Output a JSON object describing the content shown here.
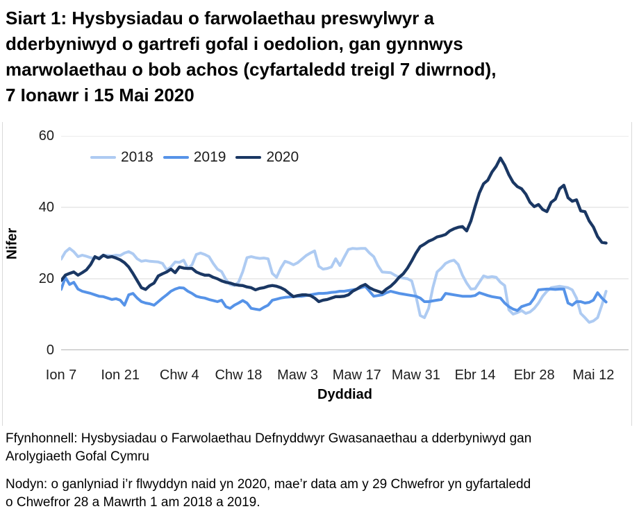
{
  "page": {
    "title_lines": [
      "Siart 1: Hysbysiadau o farwolaethau preswylwyr a",
      "dderbyniwyd o gartrefi gofal i oedolion, gan gynnwys",
      "marwolaethau o bob achos (cyfartaledd treigl 7 diwrnod),",
      "7 Ionawr i 15 Mai 2020"
    ]
  },
  "chart_data": {
    "type": "line",
    "title": "Siart 1: Hysbysiadau o farwolaethau preswylwyr a dderbyniwyd o gartrefi gofal i oedolion, gan gynnwys marwolaethau o bob achos (cyfartaledd treigl 7 diwrnod), 7 Ionawr i 15 Mai 2020",
    "xlabel": "Dyddiad",
    "ylabel": "Nifer",
    "ylim": [
      0,
      60
    ],
    "y_ticks": [
      0,
      20,
      40,
      60
    ],
    "grid": true,
    "gridline_color": "#d9d9d9",
    "axis_line_color": "#999999",
    "legend_position": "top-left",
    "x_unit": "days from 7 Ionawr 2020",
    "x_range_days": [
      0,
      129
    ],
    "x_ticks": [
      {
        "label": "Ion 7",
        "day": 0
      },
      {
        "label": "Ion 21",
        "day": 14
      },
      {
        "label": "Chw 4",
        "day": 28
      },
      {
        "label": "Chw 18",
        "day": 42
      },
      {
        "label": "Maw 3",
        "day": 56
      },
      {
        "label": "Maw 17",
        "day": 70
      },
      {
        "label": "Maw 31",
        "day": 84
      },
      {
        "label": "Ebr 14",
        "day": 98
      },
      {
        "label": "Ebr 28",
        "day": 112
      },
      {
        "label": "Mai 12",
        "day": 126
      }
    ],
    "series": [
      {
        "name": "2018",
        "color": "#aecbf2",
        "values": [
          25.5,
          27.5,
          28.5,
          27.6,
          26.2,
          26.6,
          26.3,
          25.9,
          25.7,
          26.0,
          26.6,
          26.5,
          26.4,
          26.6,
          26.5,
          27.2,
          27.6,
          27.0,
          25.6,
          24.9,
          25.1,
          24.9,
          24.8,
          24.7,
          24.3,
          22.5,
          23.3,
          24.7,
          24.6,
          25.2,
          22.9,
          23.9,
          26.8,
          27.2,
          26.8,
          26.2,
          24.3,
          22.7,
          22.0,
          19.8,
          18.4,
          18.1,
          19.0,
          22.0,
          25.9,
          26.2,
          25.9,
          25.7,
          25.8,
          25.6,
          21.5,
          20.4,
          23.0,
          24.9,
          24.5,
          23.9,
          24.5,
          25.5,
          26.5,
          27.2,
          27.8,
          23.5,
          22.7,
          22.9,
          23.3,
          25.6,
          23.7,
          26.0,
          28.2,
          28.5,
          28.4,
          28.5,
          28.5,
          27.2,
          26.2,
          23.7,
          21.9,
          21.8,
          21.7,
          21.0,
          20.4,
          20.2,
          20.0,
          19.4,
          15.1,
          9.7,
          9.1,
          11.7,
          17.5,
          21.9,
          23.0,
          24.3,
          24.9,
          25.2,
          24.0,
          21.0,
          18.8,
          17.1,
          17.2,
          19.0,
          20.8,
          20.4,
          20.6,
          20.4,
          19.0,
          18.1,
          11.3,
          10.1,
          10.5,
          11.1,
          10.3,
          10.7,
          11.7,
          13.2,
          15.1,
          16.5,
          17.5,
          17.7,
          17.9,
          17.7,
          17.5,
          16.9,
          14.6,
          10.3,
          9.1,
          7.8,
          8.2,
          9.1,
          12.6,
          16.5
        ]
      },
      {
        "name": "2019",
        "color": "#5693e8",
        "values": [
          17.0,
          20.4,
          18.4,
          19.0,
          17.1,
          16.5,
          16.2,
          15.9,
          15.5,
          15.1,
          15.0,
          14.6,
          14.2,
          14.4,
          14.0,
          12.6,
          15.5,
          15.9,
          14.6,
          13.6,
          13.2,
          13.0,
          12.6,
          13.6,
          14.6,
          15.5,
          16.5,
          17.1,
          17.5,
          17.4,
          16.5,
          15.9,
          15.1,
          14.8,
          14.6,
          14.2,
          13.9,
          13.6,
          14.0,
          12.2,
          11.7,
          12.6,
          13.2,
          13.9,
          13.2,
          11.7,
          11.5,
          11.3,
          12.0,
          12.6,
          14.0,
          14.3,
          14.6,
          14.8,
          14.9,
          15.0,
          15.1,
          15.1,
          15.3,
          15.5,
          15.7,
          15.9,
          15.9,
          16.0,
          16.2,
          16.3,
          16.5,
          16.5,
          16.7,
          16.9,
          17.1,
          17.5,
          17.9,
          16.5,
          15.1,
          15.3,
          15.5,
          16.1,
          16.5,
          16.2,
          15.9,
          15.7,
          15.5,
          15.3,
          15.1,
          14.6,
          13.6,
          13.6,
          13.8,
          14.0,
          14.2,
          15.9,
          15.7,
          15.5,
          15.3,
          15.1,
          15.1,
          15.1,
          15.3,
          16.1,
          15.7,
          15.3,
          15.0,
          14.8,
          14.6,
          13.2,
          12.2,
          11.5,
          11.1,
          12.2,
          12.6,
          13.0,
          14.6,
          16.9,
          17.0,
          17.1,
          17.1,
          17.0,
          17.1,
          17.1,
          13.2,
          12.6,
          13.6,
          13.6,
          13.2,
          13.4,
          14.0,
          16.1,
          14.6,
          13.5
        ]
      },
      {
        "name": "2020",
        "color": "#1a3763",
        "values": [
          19.5,
          21.0,
          21.5,
          21.9,
          21.0,
          21.7,
          22.5,
          24.0,
          26.2,
          25.6,
          26.6,
          26.0,
          26.2,
          25.8,
          25.3,
          24.5,
          23.3,
          21.5,
          19.5,
          17.5,
          17.0,
          18.1,
          18.8,
          20.8,
          21.4,
          21.9,
          22.7,
          21.7,
          23.3,
          23.0,
          22.9,
          22.9,
          21.9,
          21.4,
          21.0,
          21.0,
          20.4,
          20.0,
          19.4,
          19.0,
          18.8,
          18.4,
          18.2,
          18.1,
          17.7,
          17.5,
          16.9,
          17.3,
          17.5,
          17.9,
          18.1,
          17.9,
          17.5,
          16.9,
          15.9,
          15.0,
          15.3,
          15.5,
          15.5,
          15.3,
          14.6,
          13.6,
          14.0,
          14.2,
          14.6,
          15.0,
          15.0,
          15.1,
          15.5,
          16.5,
          17.1,
          17.9,
          18.4,
          17.5,
          16.9,
          16.5,
          16.1,
          17.1,
          17.9,
          19.0,
          20.4,
          21.4,
          23.0,
          25.0,
          27.2,
          29.0,
          29.7,
          30.5,
          31.0,
          31.7,
          32.0,
          32.4,
          33.4,
          34.0,
          34.4,
          34.6,
          33.4,
          36.2,
          40.2,
          44.0,
          46.6,
          47.6,
          49.9,
          51.5,
          53.8,
          51.8,
          49.1,
          47.0,
          45.8,
          45.2,
          43.7,
          41.4,
          40.2,
          40.8,
          39.4,
          38.8,
          41.4,
          42.3,
          45.2,
          46.2,
          42.7,
          41.7,
          42.1,
          39.0,
          38.8,
          36.2,
          34.5,
          31.8,
          30.2,
          30.0
        ]
      }
    ]
  },
  "footer": {
    "source_lines": [
      "Ffynhonnell: Hysbysiadau o Farwolaethau Defnyddwyr Gwasanaethau a dderbyniwyd gan",
      "Arolygiaeth Gofal Cymru"
    ],
    "note_lines": [
      "Nodyn: o ganlyniad i’r flwyddyn naid yn 2020, mae’r data am y 29 Chwefror yn gyfartaledd",
      "o Chwefror 28 a Mawrth 1 am 2018 a 2019."
    ]
  }
}
